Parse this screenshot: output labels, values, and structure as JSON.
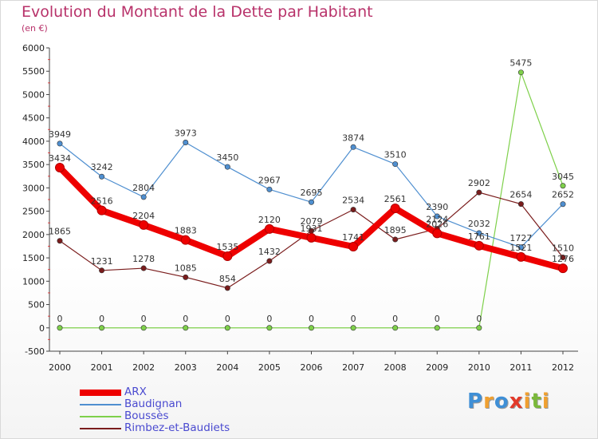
{
  "header": {
    "title": "Evolution du Montant de la Dette par Habitant",
    "subtitle": "(en €)"
  },
  "logo": {
    "text": "Proxiti",
    "letters": [
      {
        "ch": "P",
        "color": "#3f8fd6"
      },
      {
        "ch": "r",
        "color": "#f0a030"
      },
      {
        "ch": "o",
        "color": "#3f8fd6"
      },
      {
        "ch": "x",
        "color": "#e23a2a"
      },
      {
        "ch": "i",
        "color": "#f0a030"
      },
      {
        "ch": "t",
        "color": "#7ab83a"
      },
      {
        "ch": "i",
        "color": "#f0a030"
      }
    ]
  },
  "chart_data": {
    "type": "line",
    "title": "Evolution du Montant de la Dette par Habitant",
    "subtitle": "(en €)",
    "x": [
      "2000",
      "2001",
      "2002",
      "2003",
      "2004",
      "2005",
      "2006",
      "2007",
      "2008",
      "2009",
      "2010",
      "2011",
      "2012"
    ],
    "ylim": [
      -500,
      6000
    ],
    "yticks": [
      "-500",
      "0",
      "500",
      "1000",
      "1500",
      "2000",
      "2500",
      "3000",
      "3500",
      "4000",
      "4500",
      "5000",
      "5500",
      "6000"
    ],
    "grid": false,
    "legend_position": "bottom-left",
    "series": [
      {
        "name": "ARX",
        "color": "#ee0000",
        "values": [
          3434,
          2516,
          2204,
          1883,
          1535,
          2120,
          1931,
          1741,
          2561,
          2026,
          1761,
          1521,
          1276
        ],
        "labels": [
          "3434",
          "2516",
          "2204",
          "1883",
          "1535",
          "2120",
          "1931",
          "1741",
          "2561",
          "2026",
          "1761",
          "1521",
          "1276"
        ]
      },
      {
        "name": "Baudignan",
        "color": "#4f8fd0",
        "values": [
          3949,
          3242,
          2804,
          3973,
          3450,
          2967,
          2695,
          3874,
          3510,
          2390,
          2032,
          1727,
          2652
        ],
        "labels": [
          "3949",
          "3242",
          "2804",
          "3973",
          "3450",
          "2967",
          "2695",
          "3874",
          "3510",
          "2390",
          "2032",
          "1727",
          "2652"
        ]
      },
      {
        "name": "Boussès",
        "color": "#7ed04a",
        "values": [
          0,
          0,
          0,
          0,
          0,
          0,
          0,
          0,
          0,
          0,
          0,
          5475,
          3045
        ],
        "labels": [
          "0",
          "0",
          "0",
          "0",
          "0",
          "0",
          "0",
          "0",
          "0",
          "0",
          "0",
          "5475",
          "3045"
        ]
      },
      {
        "name": "Rimbez-et-Baudiets",
        "color": "#7a1c1c",
        "values": [
          1865,
          1231,
          1278,
          1085,
          854,
          1432,
          2079,
          2534,
          1895,
          2124,
          2902,
          2654,
          1510
        ],
        "labels": [
          "1865",
          "1231",
          "1278",
          "1085",
          "854",
          "1432",
          "2079",
          "2534",
          "1895",
          "2124",
          "2902",
          "2654",
          "1510"
        ]
      }
    ]
  }
}
